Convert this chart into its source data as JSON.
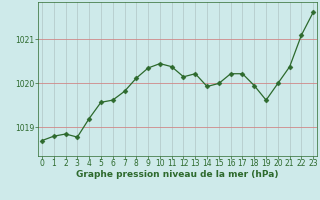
{
  "x": [
    0,
    1,
    2,
    3,
    4,
    5,
    6,
    7,
    8,
    9,
    10,
    11,
    12,
    13,
    14,
    15,
    16,
    17,
    18,
    19,
    20,
    21,
    22,
    23
  ],
  "y": [
    1018.7,
    1018.8,
    1018.85,
    1018.78,
    1019.2,
    1019.57,
    1019.62,
    1019.82,
    1020.12,
    1020.35,
    1020.45,
    1020.38,
    1020.15,
    1020.22,
    1019.93,
    1020.0,
    1020.22,
    1020.22,
    1019.95,
    1019.62,
    1020.0,
    1020.38,
    1021.1,
    1021.62
  ],
  "line_color": "#2d6a2d",
  "marker_color": "#2d6a2d",
  "bg_color": "#ceeaea",
  "vgrid_color": "#b5cccc",
  "hgrid_color": "#d08888",
  "xlabel": "Graphe pression niveau de la mer (hPa)",
  "yticks": [
    1019,
    1020,
    1021
  ],
  "xticks": [
    0,
    1,
    2,
    3,
    4,
    5,
    6,
    7,
    8,
    9,
    10,
    11,
    12,
    13,
    14,
    15,
    16,
    17,
    18,
    19,
    20,
    21,
    22,
    23
  ],
  "ylim": [
    1018.35,
    1021.85
  ],
  "xlim": [
    -0.3,
    23.3
  ],
  "xlabel_color": "#2d6a2d",
  "tick_color": "#2d6a2d",
  "xlabel_fontsize": 6.5,
  "tick_fontsize": 5.5,
  "linewidth": 0.9,
  "markersize": 2.5
}
